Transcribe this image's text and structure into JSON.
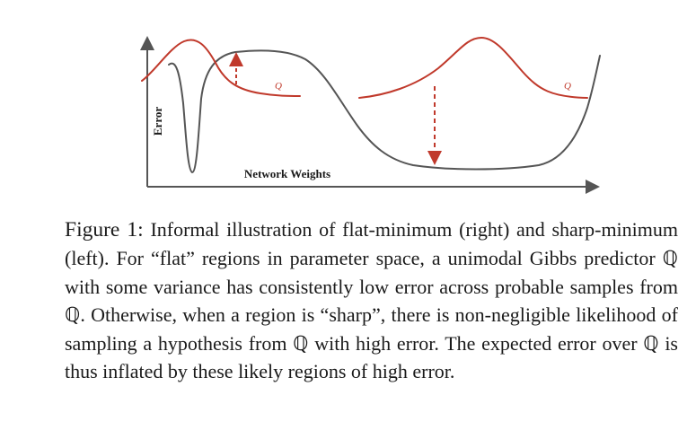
{
  "figure": {
    "x_axis_label": "Network Weights",
    "y_axis_label": "Error",
    "left_q_label": "Q",
    "right_q_label": "Q",
    "colors": {
      "loss_curve": "#555555",
      "distribution": "#c0392b",
      "axis": "#555555"
    }
  },
  "caption": {
    "label": "Figure 1:",
    "text": "Informal illustration of flat-minimum (right) and sharp-minimum (left). For “flat” regions in parameter space, a unimodal Gibbs predictor ℚ with some variance has consistently low error across probable samples from ℚ. Otherwise, when a region is “sharp”, there is non-negligible likelihood of sampling a hypothesis from ℚ with high error. The expected error over ℚ is thus inflated by these likely regions of high error."
  }
}
